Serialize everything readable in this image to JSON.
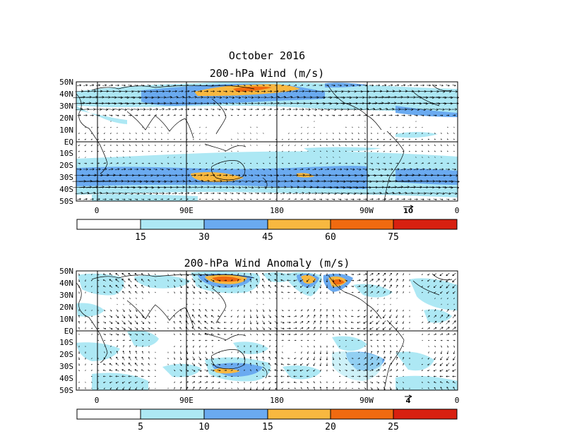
{
  "figure": {
    "title_line1": "October 2016",
    "colors": {
      "cyan": "#ade8f4",
      "blue": "#6aaaf0",
      "yellow": "#f8b840",
      "orange": "#f06a10",
      "red": "#d82010",
      "white": "#ffffff"
    }
  },
  "panels": [
    {
      "title": "200-hPa Wind (m/s)",
      "lat_labels": [
        "50N",
        "40N",
        "30N",
        "20N",
        "10N",
        "EQ",
        "10S",
        "20S",
        "30S",
        "40S",
        "50S"
      ],
      "lon_labels": [
        "0",
        "90E",
        "180",
        "90W",
        "0"
      ],
      "reference_vector": "10",
      "colorbar": {
        "ticks": [
          "15",
          "30",
          "45",
          "60",
          "75"
        ]
      }
    },
    {
      "title": "200-hPa Wind Anomaly (m/s)",
      "lat_labels": [
        "50N",
        "40N",
        "30N",
        "20N",
        "10N",
        "EQ",
        "10S",
        "20S",
        "30S",
        "40S",
        "50S"
      ],
      "lon_labels": [
        "0",
        "90E",
        "180",
        "90W",
        "0"
      ],
      "reference_vector": "4",
      "colorbar": {
        "ticks": [
          "5",
          "10",
          "15",
          "20",
          "25"
        ]
      }
    }
  ]
}
